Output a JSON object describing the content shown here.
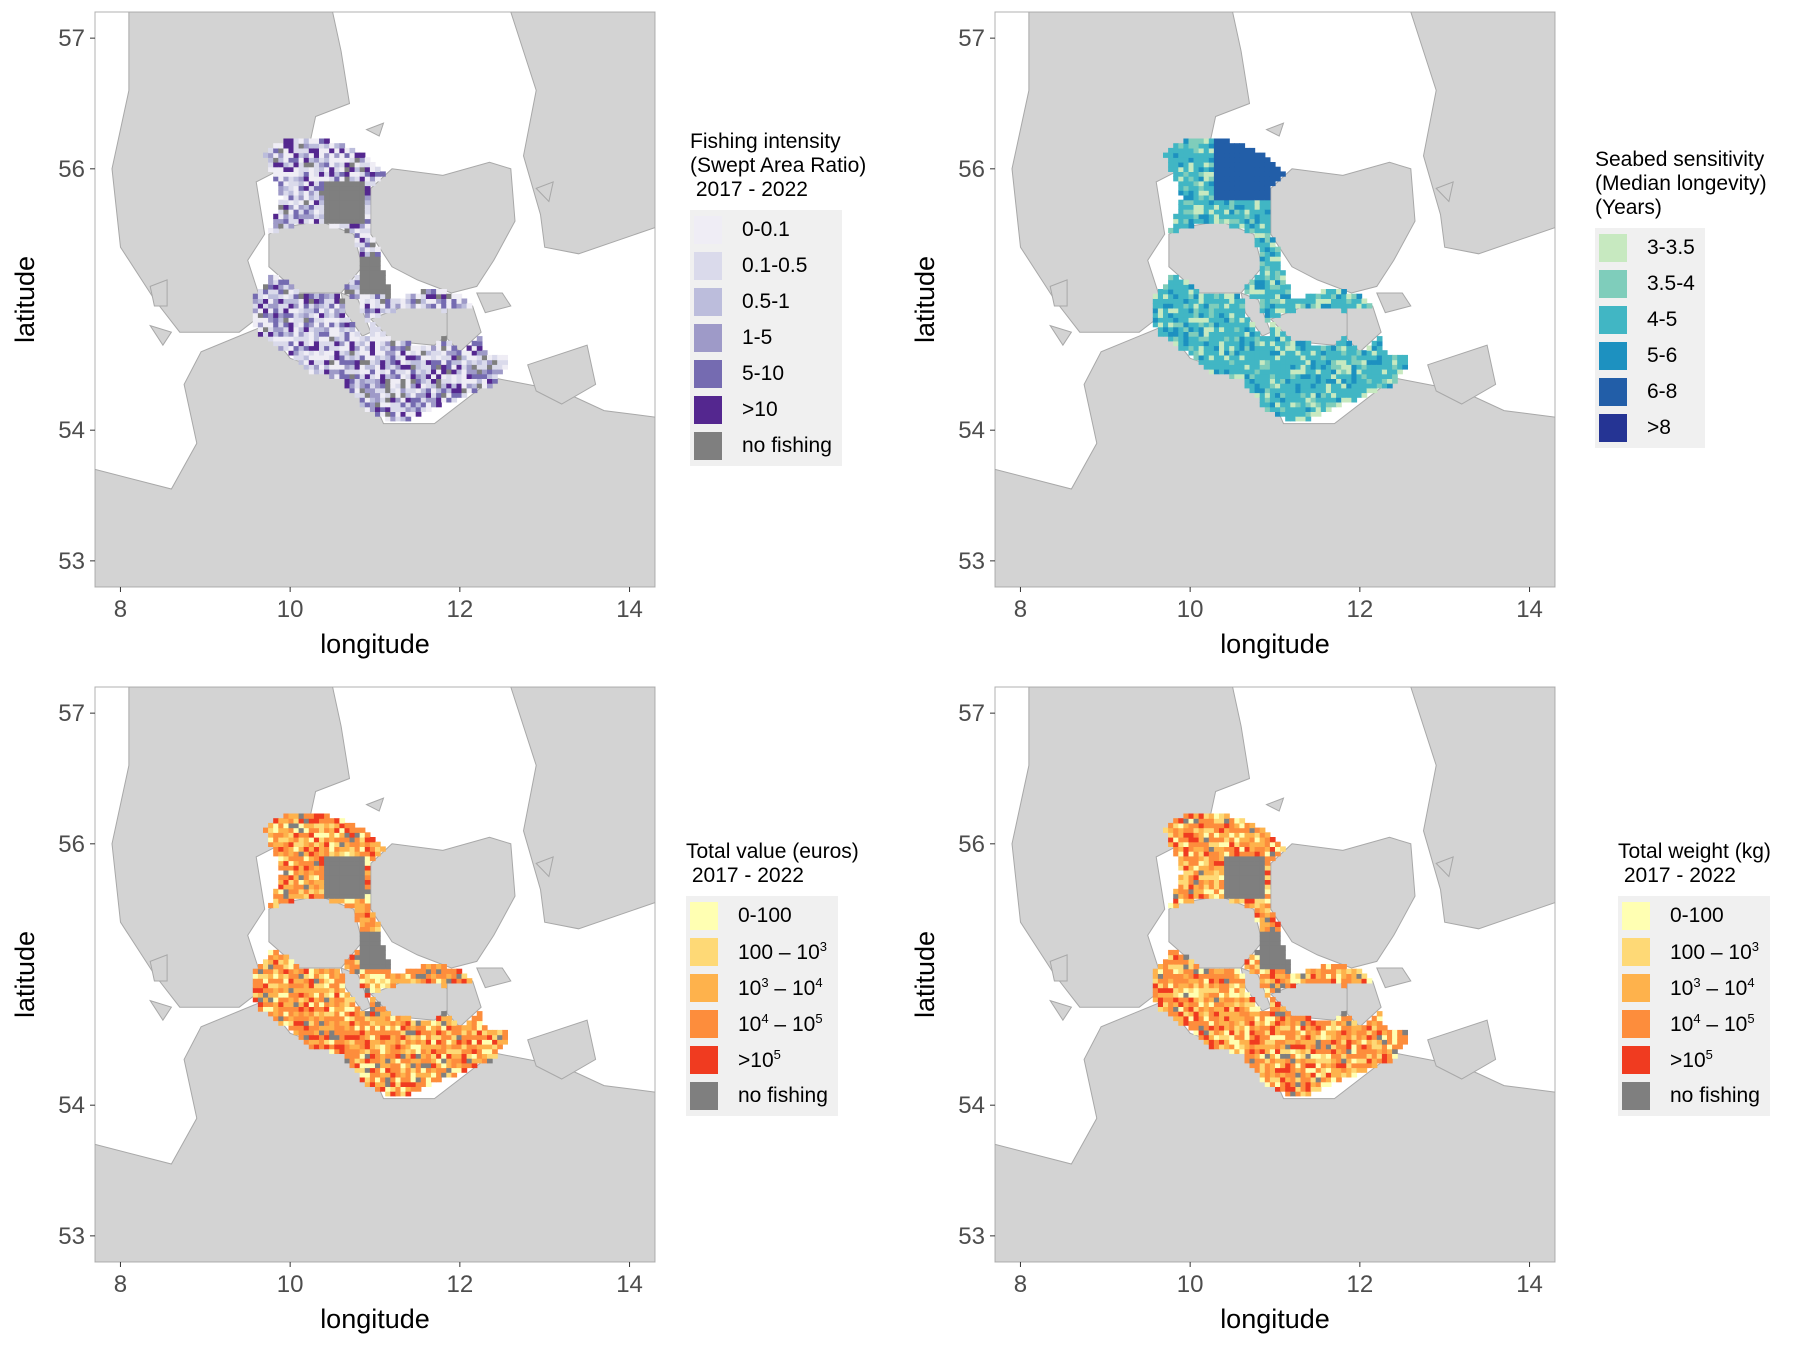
{
  "axes": {
    "xlabel": "longitude",
    "ylabel": "latitude",
    "xticks": [
      "8",
      "10",
      "12",
      "14"
    ],
    "yticks": [
      "53",
      "54",
      "56",
      "57"
    ],
    "xlim": [
      7.7,
      14.3
    ],
    "ylim": [
      52.8,
      57.2
    ]
  },
  "colors": {
    "land": "#d3d3d3",
    "sea": "#ffffff",
    "no_fishing": "#7f7f7f",
    "frame": "#b0b0b0"
  },
  "panels": [
    {
      "id": "fishing-intensity",
      "legend_title": "Fishing intensity\n(Swept Area Ratio)\n 2017 - 2022",
      "legend": [
        {
          "label": "0-0.1",
          "color": "#efedf5"
        },
        {
          "label": "0.1-0.5",
          "color": "#dadaeb"
        },
        {
          "label": "0.5-1",
          "color": "#bcbddc"
        },
        {
          "label": "1-5",
          "color": "#9e9ac8"
        },
        {
          "label": "5-10",
          "color": "#756bb1"
        },
        {
          "label": ">10",
          "color": "#54278f"
        },
        {
          "label": "no fishing",
          "color": "#7f7f7f"
        }
      ],
      "palette": [
        "#efedf5",
        "#efedf5",
        "#dadaeb",
        "#dadaeb",
        "#bcbddc",
        "#9e9ac8",
        "#756bb1",
        "#54278f"
      ]
    },
    {
      "id": "seabed-sensitivity",
      "legend_title": "Seabed sensitivity\n(Median longevity)\n(Years)",
      "legend": [
        {
          "label": "3-3.5",
          "color": "#c7e9c0"
        },
        {
          "label": "3.5-4",
          "color": "#7fcdbb"
        },
        {
          "label": "4-5",
          "color": "#41b6c4"
        },
        {
          "label": "5-6",
          "color": "#1d91c0"
        },
        {
          "label": "6-8",
          "color": "#225ea8"
        },
        {
          "label": ">8",
          "color": "#253494"
        }
      ],
      "palette": [
        "#41b6c4",
        "#41b6c4",
        "#41b6c4",
        "#41b6c4",
        "#1d91c0",
        "#7fcdbb",
        "#c7e9c0",
        "#225ea8"
      ]
    },
    {
      "id": "total-value",
      "legend_title": "Total value (euros)\n 2017 - 2022",
      "legend": [
        {
          "label": "0-100",
          "color": "#ffffb2"
        },
        {
          "label": "100 – 10<sup>3</sup>",
          "color": "#fed976"
        },
        {
          "label": "10<sup>3</sup> – 10<sup>4</sup>",
          "color": "#feb24c"
        },
        {
          "label": "10<sup>4</sup> – 10<sup>5</sup>",
          "color": "#fd8d3c"
        },
        {
          "label": ">10<sup>5</sup>",
          "color": "#f03b20"
        },
        {
          "label": "no fishing",
          "color": "#7f7f7f"
        }
      ],
      "palette": [
        "#ffffb2",
        "#fed976",
        "#feb24c",
        "#feb24c",
        "#fd8d3c",
        "#fd8d3c",
        "#fd8d3c",
        "#f03b20"
      ]
    },
    {
      "id": "total-weight",
      "legend_title": "Total weight (kg)\n 2017 - 2022",
      "legend": [
        {
          "label": "0-100",
          "color": "#ffffb2"
        },
        {
          "label": "100 – 10<sup>3</sup>",
          "color": "#fed976"
        },
        {
          "label": "10<sup>3</sup> – 10<sup>4</sup>",
          "color": "#feb24c"
        },
        {
          "label": "10<sup>4</sup> – 10<sup>5</sup>",
          "color": "#fd8d3c"
        },
        {
          "label": ">10<sup>5</sup>",
          "color": "#f03b20"
        },
        {
          "label": "no fishing",
          "color": "#7f7f7f"
        }
      ],
      "palette": [
        "#ffffb2",
        "#fed976",
        "#feb24c",
        "#feb24c",
        "#fd8d3c",
        "#fd8d3c",
        "#fd8d3c",
        "#f03b20"
      ]
    }
  ]
}
